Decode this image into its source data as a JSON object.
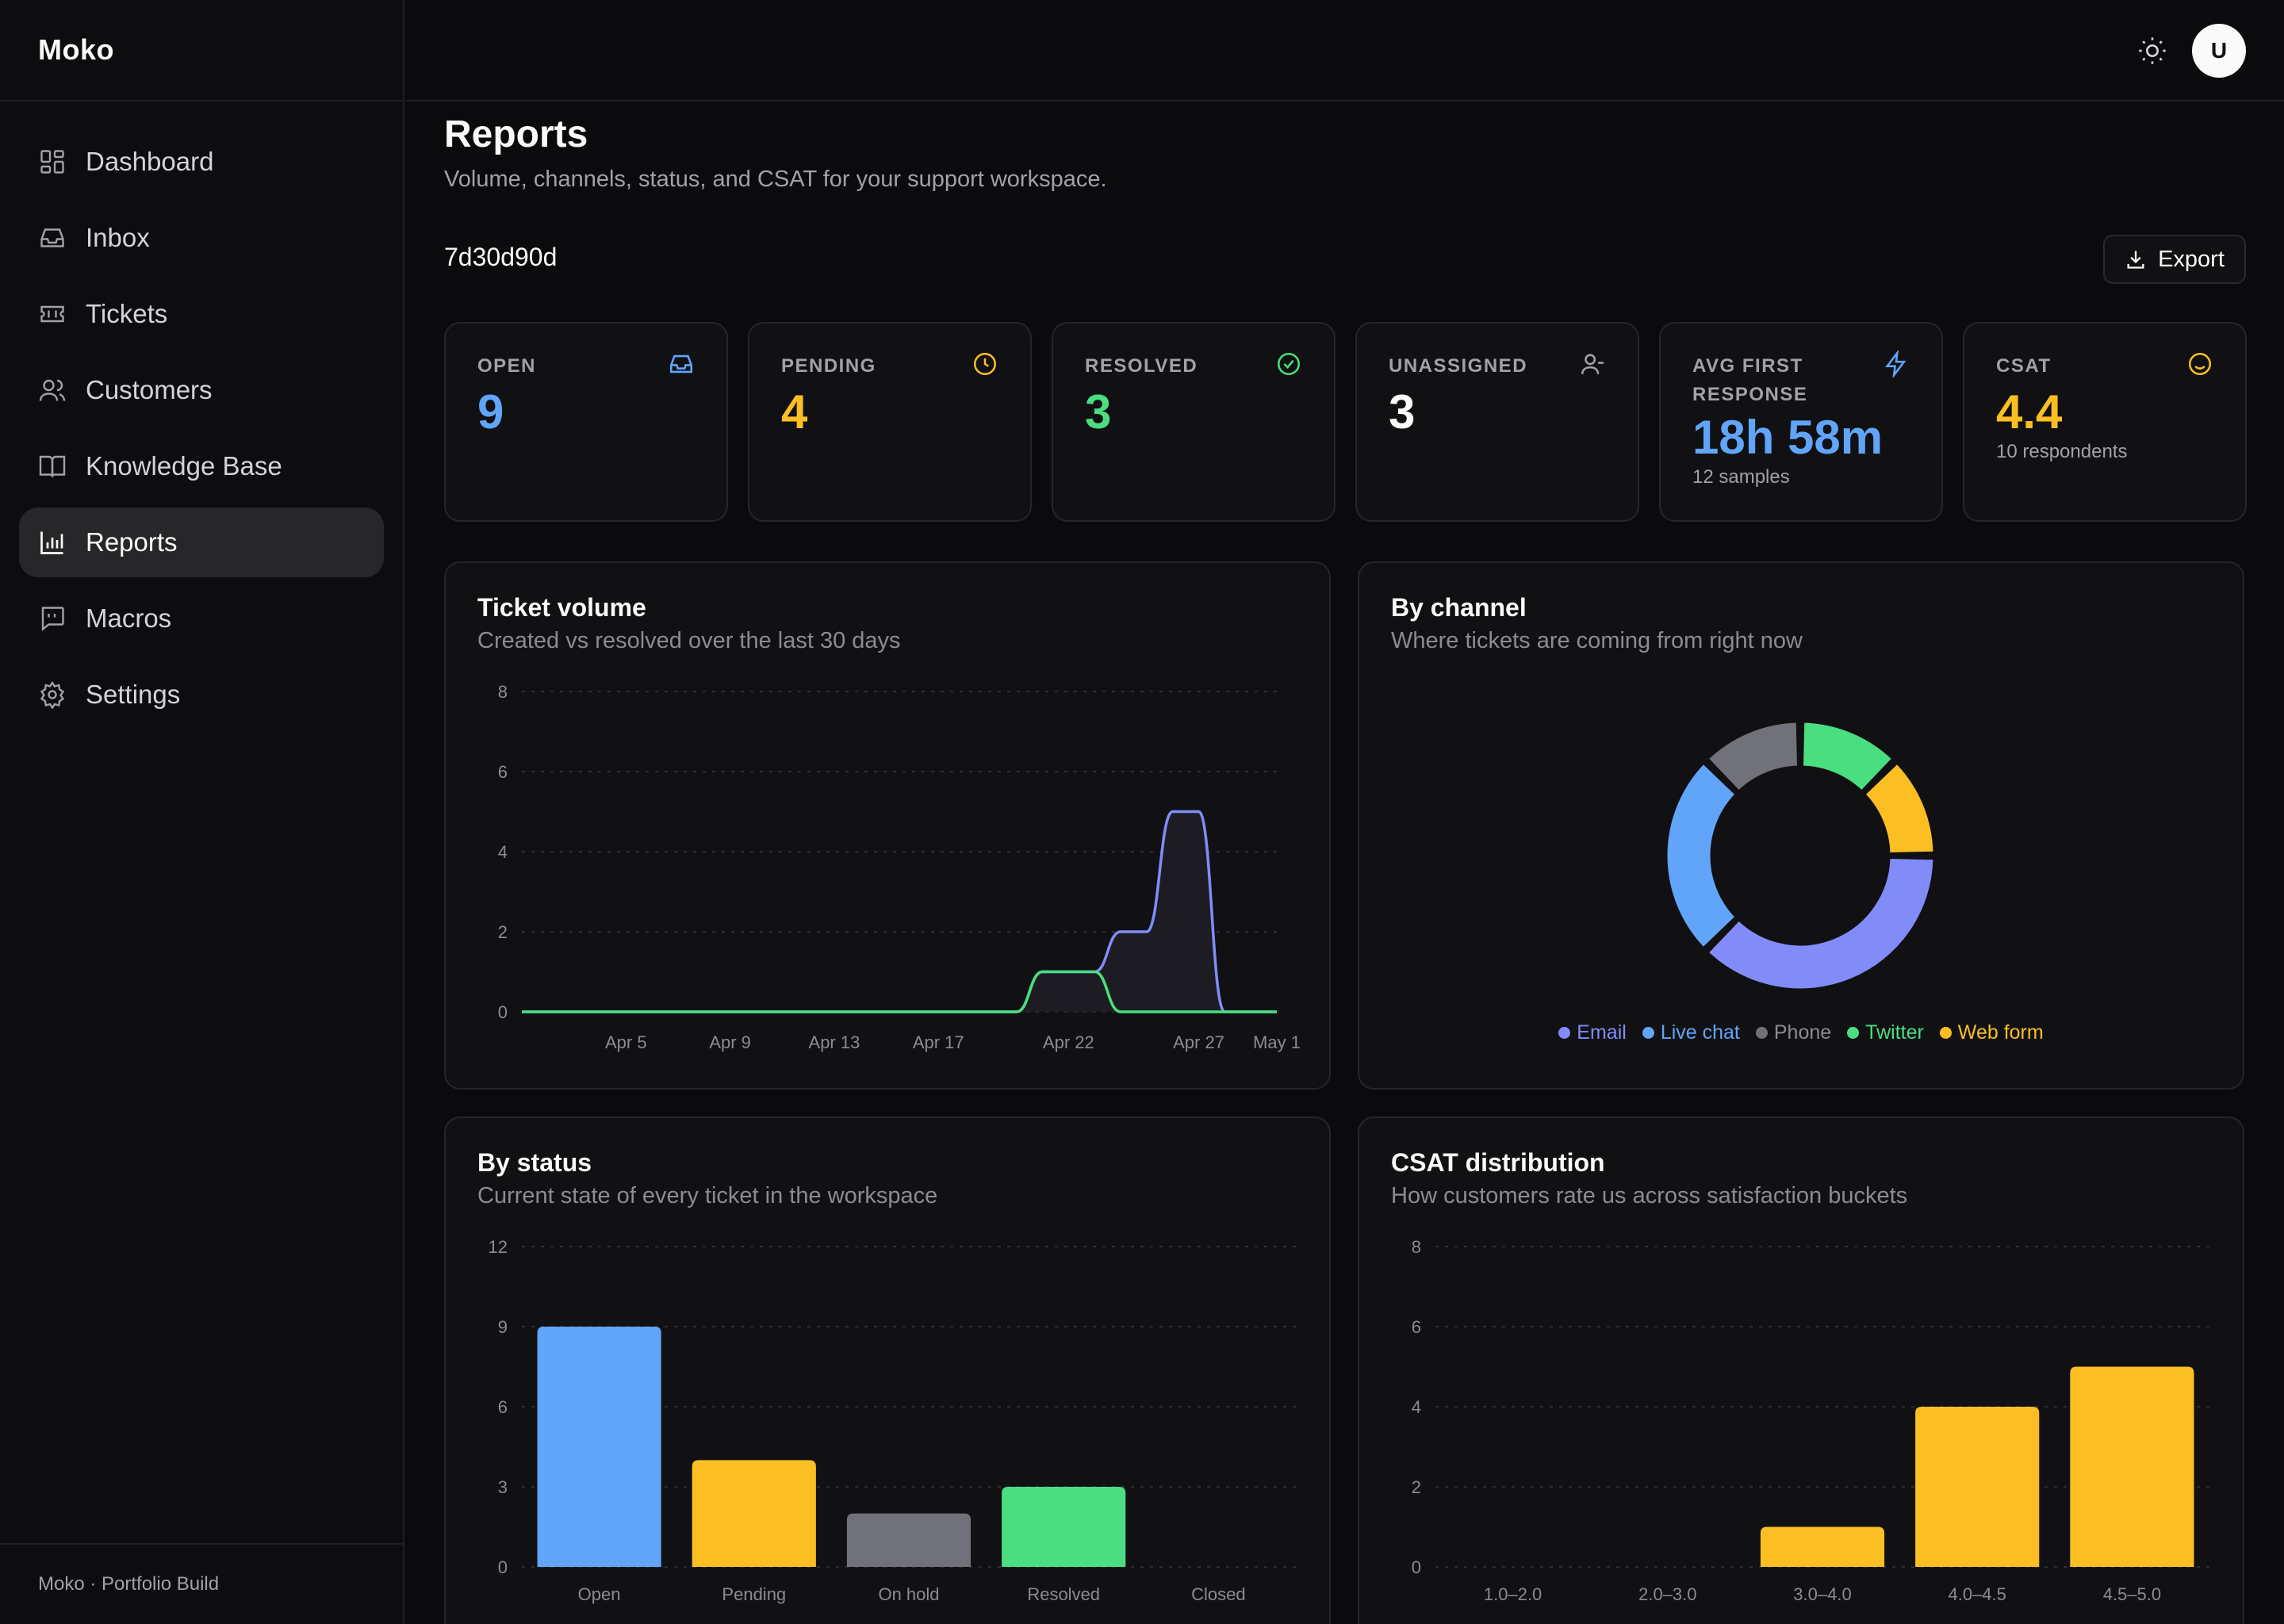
{
  "app": {
    "brand": "Moko",
    "footer": "Moko · Portfolio Build",
    "avatar_initial": "U"
  },
  "sidebar": {
    "items": [
      {
        "label": "Dashboard",
        "icon": "dashboard-icon"
      },
      {
        "label": "Inbox",
        "icon": "inbox-icon"
      },
      {
        "label": "Tickets",
        "icon": "ticket-icon"
      },
      {
        "label": "Customers",
        "icon": "users-icon"
      },
      {
        "label": "Knowledge Base",
        "icon": "book-icon"
      },
      {
        "label": "Reports",
        "icon": "bar-chart-icon",
        "active": true
      },
      {
        "label": "Macros",
        "icon": "message-quote-icon"
      },
      {
        "label": "Settings",
        "icon": "gear-icon"
      }
    ]
  },
  "header": {
    "title": "Reports",
    "subtitle": "Volume, channels, status, and CSAT for your support workspace.",
    "workspace_id": "7d30d90d",
    "export_label": "Export"
  },
  "stats": [
    {
      "label": "OPEN",
      "value": "9",
      "note": "",
      "icon": "inbox-icon",
      "color": "#60a5fa"
    },
    {
      "label": "PENDING",
      "value": "4",
      "note": "",
      "icon": "clock-icon",
      "color": "#fbbf24"
    },
    {
      "label": "RESOLVED",
      "value": "3",
      "note": "",
      "icon": "check-circle-icon",
      "color": "#4ade80"
    },
    {
      "label": "UNASSIGNED",
      "value": "3",
      "note": "",
      "icon": "user-minus-icon",
      "color": "#fafafa"
    },
    {
      "label": "AVG FIRST RESPONSE",
      "value": "18h 58m",
      "note": "12 samples",
      "icon": "bolt-icon",
      "color": "#60a5fa"
    },
    {
      "label": "CSAT",
      "value": "4.4",
      "note": "10 respondents",
      "icon": "smile-icon",
      "color": "#fbbf24"
    }
  ],
  "panels": {
    "volume": {
      "title": "Ticket volume",
      "subtitle": "Created vs resolved over the last 30 days"
    },
    "channel": {
      "title": "By channel",
      "subtitle": "Where tickets are coming from right now"
    },
    "status": {
      "title": "By status",
      "subtitle": "Current state of every ticket in the workspace"
    },
    "csat": {
      "title": "CSAT distribution",
      "subtitle": "How customers rate us across satisfaction buckets"
    }
  },
  "chart_data": [
    {
      "type": "area",
      "title": "Ticket volume",
      "x_ticks": [
        "Apr 5",
        "Apr 9",
        "Apr 13",
        "Apr 17",
        "Apr 22",
        "Apr 27",
        "May 1"
      ],
      "ylim": [
        0,
        8
      ],
      "y_ticks": [
        0,
        2,
        4,
        6,
        8
      ],
      "grid": true,
      "series": [
        {
          "color": "#818cf8",
          "values": [
            0,
            0,
            0,
            0,
            0,
            0,
            0,
            0,
            0,
            0,
            0,
            0,
            0,
            0,
            0,
            0,
            0,
            0,
            0,
            0,
            1,
            1,
            1,
            2,
            2,
            5,
            5,
            0,
            0,
            0
          ]
        },
        {
          "color": "#4ade80",
          "values": [
            0,
            0,
            0,
            0,
            0,
            0,
            0,
            0,
            0,
            0,
            0,
            0,
            0,
            0,
            0,
            0,
            0,
            0,
            0,
            0,
            1,
            1,
            1,
            0,
            0,
            0,
            0,
            0,
            0,
            0
          ]
        }
      ]
    },
    {
      "type": "pie",
      "title": "By channel",
      "categories": [
        "Email",
        "Live chat",
        "Phone",
        "Twitter",
        "Web form"
      ],
      "values": [
        6,
        4,
        2,
        2,
        2
      ],
      "colors": [
        "#818cf8",
        "#60a5fa",
        "#71717a",
        "#4ade80",
        "#fbbf24"
      ],
      "legend": "bottom"
    },
    {
      "type": "bar",
      "title": "By status",
      "categories": [
        "Open",
        "Pending",
        "On hold",
        "Resolved",
        "Closed"
      ],
      "values": [
        9,
        4,
        2,
        3,
        0
      ],
      "colors": [
        "#60a5fa",
        "#fbbf24",
        "#71717a",
        "#4ade80",
        "#a1a1aa"
      ],
      "ylim": [
        0,
        12
      ],
      "y_ticks": [
        0,
        3,
        6,
        9,
        12
      ],
      "grid": true
    },
    {
      "type": "bar",
      "title": "CSAT distribution",
      "categories": [
        "1.0–2.0",
        "2.0–3.0",
        "3.0–4.0",
        "4.0–4.5",
        "4.5–5.0"
      ],
      "values": [
        0,
        0,
        1,
        4,
        5
      ],
      "colors": [
        "#fbbf24",
        "#fbbf24",
        "#fbbf24",
        "#fbbf24",
        "#fbbf24"
      ],
      "ylim": [
        0,
        8
      ],
      "y_ticks": [
        0,
        2,
        4,
        6,
        8
      ],
      "grid": true
    }
  ]
}
